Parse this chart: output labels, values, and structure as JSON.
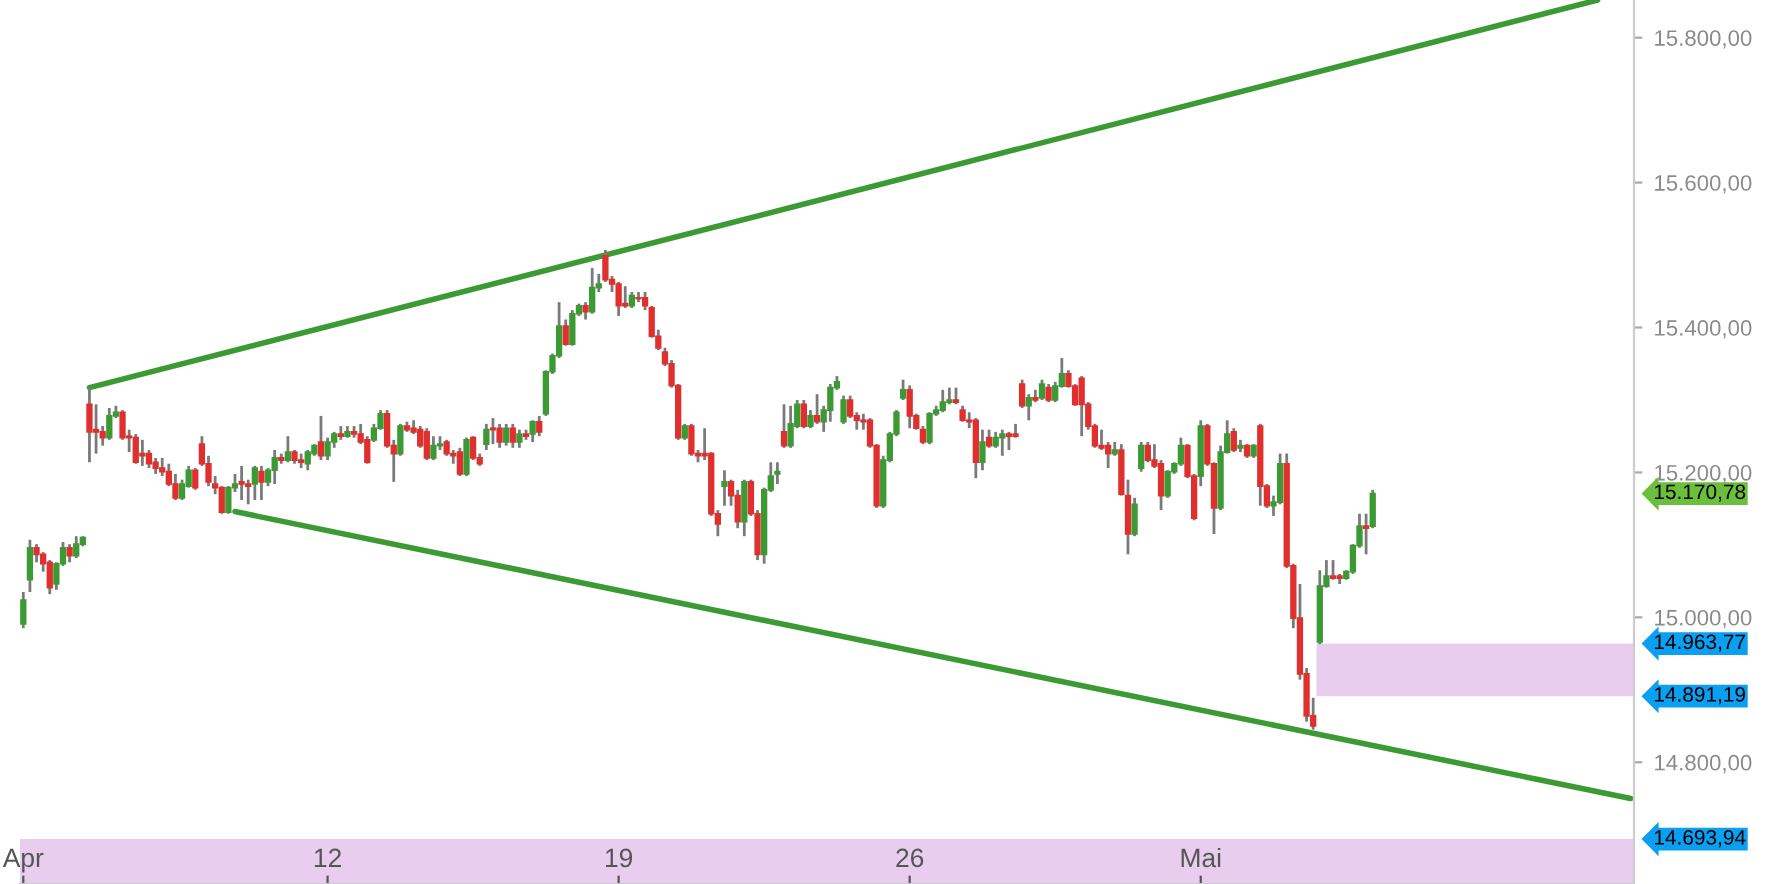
{
  "chart_data": {
    "type": "candlestick",
    "categories": [
      "Apr",
      null,
      null,
      null,
      null,
      null,
      null,
      null,
      null,
      null,
      null,
      null,
      null,
      null,
      null,
      null,
      null,
      null,
      null,
      null,
      null,
      null,
      null,
      null,
      null,
      null,
      null,
      null,
      null,
      null,
      null,
      null,
      null,
      null,
      null,
      null,
      null,
      null,
      null,
      null,
      null,
      null,
      null,
      null,
      null,
      null,
      "12",
      null,
      null,
      null,
      null,
      null,
      null,
      null,
      null,
      null,
      null,
      null,
      null,
      null,
      null,
      null,
      null,
      null,
      null,
      null,
      null,
      null,
      null,
      null,
      null,
      null,
      null,
      null,
      null,
      null,
      null,
      null,
      null,
      null,
      null,
      null,
      null,
      null,
      null,
      null,
      null,
      null,
      null,
      null,
      "19",
      null,
      null,
      null,
      null,
      null,
      null,
      null,
      null,
      null,
      null,
      null,
      null,
      null,
      null,
      null,
      null,
      null,
      null,
      null,
      null,
      null,
      null,
      null,
      null,
      null,
      null,
      null,
      null,
      null,
      null,
      null,
      null,
      null,
      null,
      null,
      null,
      null,
      null,
      null,
      null,
      null,
      null,
      null,
      "26",
      null,
      null,
      null,
      null,
      null,
      null,
      null,
      null,
      null,
      null,
      null,
      null,
      null,
      null,
      null,
      null,
      null,
      null,
      null,
      null,
      null,
      null,
      null,
      null,
      null,
      null,
      null,
      null,
      null,
      null,
      null,
      null,
      null,
      null,
      null,
      null,
      null,
      null,
      null,
      null,
      null,
      null,
      null,
      "Mai",
      null,
      null,
      null,
      null,
      null,
      null,
      null,
      null,
      null,
      null,
      null,
      null,
      null,
      null,
      null,
      null,
      null,
      null,
      null,
      null,
      null,
      null,
      null,
      null,
      null,
      null,
      null,
      null,
      null,
      null,
      null,
      null,
      null,
      null,
      null,
      null,
      null,
      null,
      null,
      null,
      null,
      null,
      null,
      null,
      null,
      null,
      null,
      null,
      null,
      null,
      null,
      null,
      null,
      null,
      null,
      null,
      null,
      null,
      null,
      null,
      null,
      null,
      null,
      null,
      null
    ],
    "ohlc": [
      [
        14991,
        15035,
        14985,
        15024
      ],
      [
        15052,
        15107,
        15035,
        15096
      ],
      [
        15096,
        15101,
        15076,
        15087
      ],
      [
        15087,
        15090,
        15063,
        15074
      ],
      [
        15076,
        15079,
        15032,
        15041
      ],
      [
        15046,
        15076,
        15038,
        15074
      ],
      [
        15074,
        15104,
        15071,
        15096
      ],
      [
        15096,
        15101,
        15076,
        15085
      ],
      [
        15085,
        15112,
        15082,
        15101
      ],
      [
        15101,
        15112,
        15098,
        15110
      ],
      [
        15294,
        15317,
        15214,
        15256
      ],
      [
        15259,
        15294,
        15226,
        15256
      ],
      [
        15256,
        15264,
        15237,
        15248
      ],
      [
        15248,
        15289,
        15245,
        15278
      ],
      [
        15278,
        15292,
        15275,
        15283
      ],
      [
        15283,
        15286,
        15245,
        15248
      ],
      [
        15250,
        15259,
        15228,
        15248
      ],
      [
        15248,
        15253,
        15212,
        15214
      ],
      [
        15226,
        15245,
        15209,
        15223
      ],
      [
        15226,
        15231,
        15206,
        15212
      ],
      [
        15214,
        15220,
        15198,
        15206
      ],
      [
        15206,
        15220,
        15195,
        15201
      ],
      [
        15201,
        15212,
        15181,
        15184
      ],
      [
        15184,
        15198,
        15162,
        15165
      ],
      [
        15165,
        15190,
        15162,
        15184
      ],
      [
        15181,
        15209,
        15179,
        15203
      ],
      [
        15203,
        15206,
        15176,
        15179
      ],
      [
        15239,
        15250,
        15209,
        15212
      ],
      [
        15212,
        15223,
        15181,
        15187
      ],
      [
        15184,
        15195,
        15170,
        15179
      ],
      [
        15179,
        15181,
        15143,
        15145
      ],
      [
        15145,
        15181,
        15143,
        15179
      ],
      [
        15179,
        15198,
        15173,
        15184
      ],
      [
        15187,
        15209,
        15162,
        15184
      ],
      [
        15184,
        15190,
        15156,
        15181
      ],
      [
        15184,
        15209,
        15162,
        15206
      ],
      [
        15201,
        15209,
        15162,
        15187
      ],
      [
        15187,
        15206,
        15181,
        15203
      ],
      [
        15203,
        15231,
        15184,
        15220
      ],
      [
        15220,
        15226,
        15212,
        15217
      ],
      [
        15217,
        15250,
        15214,
        15228
      ],
      [
        15228,
        15231,
        15212,
        15217
      ],
      [
        15217,
        15226,
        15206,
        15214
      ],
      [
        15212,
        15231,
        15203,
        15228
      ],
      [
        15226,
        15239,
        15223,
        15237
      ],
      [
        15242,
        15278,
        15217,
        15223
      ],
      [
        15223,
        15248,
        15217,
        15242
      ],
      [
        15242,
        15256,
        15234,
        15253
      ],
      [
        15253,
        15264,
        15245,
        15250
      ],
      [
        15250,
        15264,
        15248,
        15256
      ],
      [
        15256,
        15264,
        15248,
        15253
      ],
      [
        15253,
        15267,
        15239,
        15242
      ],
      [
        15245,
        15250,
        15212,
        15214
      ],
      [
        15245,
        15267,
        15242,
        15261
      ],
      [
        15261,
        15286,
        15259,
        15281
      ],
      [
        15281,
        15286,
        15234,
        15237
      ],
      [
        15237,
        15245,
        15187,
        15226
      ],
      [
        15226,
        15267,
        15223,
        15264
      ],
      [
        15264,
        15270,
        15256,
        15259
      ],
      [
        15261,
        15272,
        15253,
        15256
      ],
      [
        15259,
        15264,
        15234,
        15237
      ],
      [
        15256,
        15261,
        15217,
        15220
      ],
      [
        15220,
        15250,
        15217,
        15237
      ],
      [
        15237,
        15250,
        15231,
        15239
      ],
      [
        15242,
        15245,
        15223,
        15226
      ],
      [
        15226,
        15231,
        15212,
        15223
      ],
      [
        15228,
        15234,
        15195,
        15198
      ],
      [
        15198,
        15248,
        15195,
        15245
      ],
      [
        15248,
        15250,
        15217,
        15220
      ],
      [
        15220,
        15226,
        15209,
        15212
      ],
      [
        15239,
        15267,
        15231,
        15259
      ],
      [
        15261,
        15275,
        15239,
        15259
      ],
      [
        15261,
        15267,
        15234,
        15242
      ],
      [
        15242,
        15267,
        15237,
        15261
      ],
      [
        15261,
        15267,
        15234,
        15242
      ],
      [
        15242,
        15259,
        15234,
        15253
      ],
      [
        15253,
        15259,
        15245,
        15250
      ],
      [
        15253,
        15272,
        15242,
        15270
      ],
      [
        15270,
        15278,
        15250,
        15256
      ],
      [
        15281,
        15341,
        15278,
        15339
      ],
      [
        15339,
        15364,
        15336,
        15361
      ],
      [
        15361,
        15435,
        15358,
        15402
      ],
      [
        15402,
        15411,
        15375,
        15377
      ],
      [
        15377,
        15424,
        15375,
        15419
      ],
      [
        15419,
        15433,
        15416,
        15430
      ],
      [
        15430,
        15435,
        15411,
        15422
      ],
      [
        15422,
        15482,
        15419,
        15455
      ],
      [
        15455,
        15474,
        15449,
        15460
      ],
      [
        15499,
        15507,
        15463,
        15466
      ],
      [
        15466,
        15471,
        15449,
        15460
      ],
      [
        15460,
        15463,
        15416,
        15430
      ],
      [
        15433,
        15457,
        15427,
        15430
      ],
      [
        15430,
        15449,
        15427,
        15444
      ],
      [
        15441,
        15449,
        15435,
        15440
      ],
      [
        15441,
        15449,
        15424,
        15430
      ],
      [
        15427,
        15430,
        15386,
        15388
      ],
      [
        15388,
        15397,
        15369,
        15372
      ],
      [
        15366,
        15372,
        15347,
        15350
      ],
      [
        15350,
        15355,
        15317,
        15320
      ],
      [
        15320,
        15322,
        15245,
        15248
      ],
      [
        15248,
        15267,
        15245,
        15264
      ],
      [
        15264,
        15267,
        15223,
        15226
      ],
      [
        15226,
        15231,
        15214,
        15223
      ],
      [
        15226,
        15261,
        15217,
        15223
      ],
      [
        15226,
        15228,
        15140,
        15143
      ],
      [
        15143,
        15148,
        15112,
        15129
      ],
      [
        15181,
        15203,
        15154,
        15187
      ],
      [
        15187,
        15190,
        15154,
        15168
      ],
      [
        15168,
        15176,
        15123,
        15132
      ],
      [
        15132,
        15190,
        15112,
        15187
      ],
      [
        15187,
        15190,
        15140,
        15143
      ],
      [
        15143,
        15148,
        15079,
        15087
      ],
      [
        15087,
        15179,
        15074,
        15176
      ],
      [
        15176,
        15214,
        15173,
        15195
      ],
      [
        15198,
        15214,
        15184,
        15201
      ],
      [
        15256,
        15294,
        15234,
        15237
      ],
      [
        15237,
        15292,
        15234,
        15267
      ],
      [
        15264,
        15300,
        15261,
        15294
      ],
      [
        15294,
        15300,
        15261,
        15264
      ],
      [
        15264,
        15286,
        15261,
        15278
      ],
      [
        15278,
        15308,
        15267,
        15270
      ],
      [
        15270,
        15292,
        15256,
        15286
      ],
      [
        15286,
        15322,
        15270,
        15317
      ],
      [
        15317,
        15333,
        15314,
        15325
      ],
      [
        15270,
        15306,
        15267,
        15300
      ],
      [
        15300,
        15306,
        15275,
        15278
      ],
      [
        15278,
        15283,
        15259,
        15272
      ],
      [
        15272,
        15281,
        15259,
        15270
      ],
      [
        15272,
        15275,
        15234,
        15237
      ],
      [
        15237,
        15239,
        15151,
        15154
      ],
      [
        15154,
        15223,
        15151,
        15217
      ],
      [
        15217,
        15256,
        15214,
        15253
      ],
      [
        15253,
        15286,
        15250,
        15283
      ],
      [
        15303,
        15328,
        15300,
        15314
      ],
      [
        15314,
        15320,
        15261,
        15278
      ],
      [
        15278,
        15281,
        15259,
        15261
      ],
      [
        15259,
        15264,
        15239,
        15242
      ],
      [
        15242,
        15283,
        15239,
        15281
      ],
      [
        15281,
        15292,
        15278,
        15286
      ],
      [
        15286,
        15314,
        15283,
        15297
      ],
      [
        15297,
        15317,
        15294,
        15300
      ],
      [
        15300,
        15317,
        15294,
        15297
      ],
      [
        15286,
        15292,
        15270,
        15272
      ],
      [
        15272,
        15283,
        15261,
        15270
      ],
      [
        15272,
        15275,
        15192,
        15214
      ],
      [
        15214,
        15259,
        15203,
        15242
      ],
      [
        15248,
        15259,
        15234,
        15237
      ],
      [
        15237,
        15256,
        15234,
        15248
      ],
      [
        15248,
        15259,
        15223,
        15253
      ],
      [
        15253,
        15256,
        15231,
        15250
      ],
      [
        15253,
        15267,
        15248,
        15250
      ],
      [
        15322,
        15328,
        15289,
        15292
      ],
      [
        15292,
        15308,
        15272,
        15303
      ],
      [
        15303,
        15314,
        15297,
        15300
      ],
      [
        15303,
        15328,
        15300,
        15322
      ],
      [
        15317,
        15322,
        15297,
        15300
      ],
      [
        15300,
        15325,
        15297,
        15319
      ],
      [
        15319,
        15358,
        15317,
        15336
      ],
      [
        15336,
        15341,
        15317,
        15319
      ],
      [
        15319,
        15322,
        15292,
        15294
      ],
      [
        15330,
        15333,
        15250,
        15294
      ],
      [
        15294,
        15297,
        15259,
        15264
      ],
      [
        15264,
        15267,
        15234,
        15237
      ],
      [
        15237,
        15259,
        15231,
        15234
      ],
      [
        15237,
        15242,
        15206,
        15226
      ],
      [
        15226,
        15242,
        15223,
        15231
      ],
      [
        15231,
        15239,
        15168,
        15170
      ],
      [
        15168,
        15190,
        15087,
        15115
      ],
      [
        15115,
        15165,
        15112,
        15156
      ],
      [
        15206,
        15242,
        15201,
        15237
      ],
      [
        15237,
        15242,
        15214,
        15217
      ],
      [
        15217,
        15239,
        15206,
        15209
      ],
      [
        15212,
        15217,
        15148,
        15168
      ],
      [
        15168,
        15203,
        15165,
        15201
      ],
      [
        15201,
        15214,
        15198,
        15212
      ],
      [
        15212,
        15248,
        15209,
        15237
      ],
      [
        15237,
        15239,
        15192,
        15195
      ],
      [
        15195,
        15198,
        15134,
        15137
      ],
      [
        15195,
        15272,
        15181,
        15264
      ],
      [
        15264,
        15267,
        15209,
        15212
      ],
      [
        15212,
        15214,
        15115,
        15151
      ],
      [
        15151,
        15237,
        15148,
        15228
      ],
      [
        15228,
        15272,
        15226,
        15253
      ],
      [
        15256,
        15261,
        15228,
        15231
      ],
      [
        15234,
        15245,
        15228,
        15237
      ],
      [
        15237,
        15239,
        15220,
        15223
      ],
      [
        15223,
        15239,
        15220,
        15237
      ],
      [
        15264,
        15267,
        15154,
        15181
      ],
      [
        15181,
        15184,
        15151,
        15154
      ],
      [
        15154,
        15168,
        15140,
        15159
      ],
      [
        15159,
        15226,
        15156,
        15212
      ],
      [
        15212,
        15226,
        15068,
        15071
      ],
      [
        15071,
        15074,
        14985,
        14999
      ],
      [
        14999,
        15046,
        14914,
        14922
      ],
      [
        14922,
        14930,
        14856,
        14864
      ],
      [
        14864,
        14889,
        14845,
        14850
      ],
      [
        14966,
        15065,
        14963,
        15043
      ],
      [
        15043,
        15079,
        15041,
        15057
      ],
      [
        15057,
        15079,
        15052,
        15054
      ],
      [
        15057,
        15060,
        15046,
        15054
      ],
      [
        15054,
        15065,
        15052,
        15063
      ],
      [
        15063,
        15101,
        15060,
        15099
      ],
      [
        15099,
        15143,
        15096,
        15126
      ],
      [
        15126,
        15143,
        15087,
        15123
      ],
      [
        15126,
        15176,
        15123,
        15170.78
      ],
      null,
      null,
      null,
      null,
      null,
      null,
      null,
      null,
      null,
      null,
      null,
      null,
      null,
      null,
      null,
      null,
      null,
      null,
      null,
      null,
      null,
      null,
      null,
      null,
      null,
      null,
      null,
      null,
      null,
      null,
      null,
      null,
      null,
      null,
      null,
      null,
      null,
      null,
      null
    ],
    "series": [
      {
        "type": "line",
        "color": "#3c9a34",
        "values": [
          null,
          null,
          null,
          null,
          null,
          null,
          null,
          null,
          null,
          null,
          15317,
          null,
          null,
          null,
          null,
          null,
          null,
          null,
          null,
          null,
          null,
          null,
          null,
          null,
          null,
          null,
          null,
          null,
          null,
          null,
          null,
          null,
          null,
          null,
          null,
          null,
          null,
          null,
          null,
          null,
          null,
          null,
          null,
          null,
          null,
          null,
          null,
          null,
          null,
          null,
          null,
          null,
          null,
          null,
          null,
          null,
          null,
          null,
          null,
          null,
          null,
          null,
          null,
          null,
          null,
          null,
          null,
          null,
          null,
          null,
          null,
          null,
          null,
          null,
          null,
          null,
          null,
          null,
          null,
          null,
          null,
          null,
          null,
          null,
          null,
          null,
          null,
          null,
          null,
          null,
          null,
          null,
          null,
          null,
          null,
          null,
          null,
          null,
          null,
          null,
          null,
          null,
          null,
          null,
          null,
          null,
          null,
          null,
          null,
          null,
          null,
          null,
          null,
          null,
          null,
          null,
          null,
          null,
          null,
          null,
          null,
          null,
          null,
          null,
          null,
          null,
          null,
          null,
          null,
          null,
          null,
          null,
          null,
          null,
          null,
          null,
          null,
          null,
          null,
          null,
          null,
          null,
          null,
          null,
          null,
          null,
          null,
          null,
          null,
          null,
          null,
          null,
          null,
          null,
          null,
          null,
          null,
          null,
          null,
          null,
          null,
          null,
          null,
          null,
          null,
          null,
          null,
          null,
          null,
          null,
          null,
          null,
          null,
          null,
          null,
          null,
          null,
          null,
          null,
          null,
          null,
          null,
          null,
          null,
          null,
          null,
          null,
          null,
          null,
          null,
          null,
          null,
          null,
          null,
          null,
          null,
          null,
          null,
          null,
          null,
          null,
          null,
          null,
          null,
          null,
          null,
          null,
          null,
          null,
          null,
          null,
          null,
          null,
          null,
          null,
          null,
          null,
          null,
          null,
          null,
          null,
          null,
          null,
          null,
          null,
          null,
          null,
          null,
          null,
          null,
          null,
          null,
          null,
          null,
          null,
          null,
          null,
          null,
          15852,
          null,
          null,
          null,
          null,
          null
        ]
      },
      {
        "type": "line",
        "color": "#3c9a34",
        "values": [
          null,
          null,
          null,
          null,
          null,
          null,
          null,
          null,
          null,
          null,
          null,
          null,
          null,
          null,
          null,
          null,
          null,
          null,
          null,
          null,
          null,
          null,
          null,
          null,
          null,
          null,
          null,
          null,
          null,
          null,
          null,
          null,
          15146,
          null,
          null,
          null,
          null,
          null,
          null,
          null,
          null,
          null,
          null,
          null,
          null,
          null,
          null,
          null,
          null,
          null,
          null,
          null,
          null,
          null,
          null,
          null,
          null,
          null,
          null,
          null,
          null,
          null,
          null,
          null,
          null,
          null,
          null,
          null,
          null,
          null,
          null,
          null,
          null,
          null,
          null,
          null,
          null,
          null,
          null,
          null,
          null,
          null,
          null,
          null,
          null,
          null,
          null,
          null,
          null,
          null,
          null,
          null,
          null,
          null,
          null,
          null,
          null,
          null,
          null,
          null,
          null,
          null,
          null,
          null,
          null,
          null,
          null,
          null,
          null,
          null,
          null,
          null,
          null,
          null,
          null,
          null,
          null,
          null,
          null,
          null,
          null,
          null,
          null,
          null,
          null,
          null,
          null,
          null,
          null,
          null,
          null,
          null,
          null,
          null,
          null,
          null,
          null,
          null,
          null,
          null,
          null,
          null,
          null,
          null,
          null,
          null,
          null,
          null,
          null,
          null,
          null,
          null,
          null,
          null,
          null,
          null,
          null,
          null,
          null,
          null,
          null,
          null,
          null,
          null,
          null,
          null,
          null,
          null,
          null,
          null,
          null,
          null,
          null,
          null,
          null,
          null,
          null,
          null,
          null,
          null,
          null,
          null,
          null,
          null,
          null,
          null,
          null,
          null,
          null,
          null,
          null,
          null,
          null,
          null,
          null,
          null,
          null,
          null,
          null,
          null,
          null,
          null,
          null,
          null,
          null,
          null,
          null,
          null,
          null,
          null,
          null,
          null,
          null,
          null,
          null,
          null,
          null,
          null,
          null,
          null,
          null,
          null,
          null,
          null,
          null,
          null,
          null,
          null,
          null,
          null,
          null,
          null,
          null,
          null,
          null,
          null,
          null,
          null,
          null,
          null,
          null,
          null,
          null,
          14750
        ]
      }
    ],
    "ylim": [
      14632,
      15852
    ],
    "yticks": [
      {
        "value": 14800,
        "label": "14.800,00"
      },
      {
        "value": 15000,
        "label": "15.000,00"
      },
      {
        "value": 15200,
        "label": "15.200,00"
      },
      {
        "value": 15400,
        "label": "15.400,00"
      },
      {
        "value": 15600,
        "label": "15.600,00"
      },
      {
        "value": 15800,
        "label": "15.800,00"
      }
    ],
    "bands": [
      {
        "axis": "y",
        "from": 14891.19,
        "to": 14963.77,
        "color": "#e8cdee"
      },
      {
        "axis": "y",
        "from": 14632,
        "to": 14693.94,
        "color": "#e8cdee"
      }
    ],
    "annotations": [
      "15.170,78",
      "14.963,77",
      "14.891,19",
      "14.693,94"
    ],
    "grid": false
  }
}
